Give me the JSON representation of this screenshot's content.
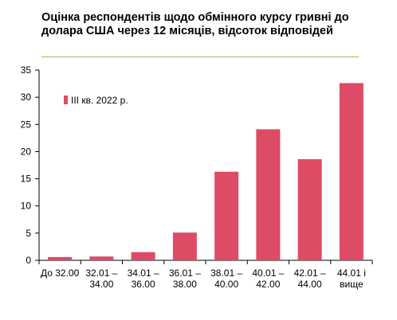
{
  "title": "Оцінка респондентів щодо обмінного курсу гривні до долара США через 12 місяців, відсоток відповідей",
  "colors": {
    "bar": "#dd4b64",
    "axis": "#000000",
    "title_rule": "#9bbb59"
  },
  "chart_data": {
    "type": "bar",
    "title": "Оцінка респондентів щодо обмінного курсу гривні до долара США через 12 місяців, відсоток відповідей",
    "categories": [
      [
        "До 32.00"
      ],
      [
        "32.01 –",
        "34.00"
      ],
      [
        "34.01 –",
        "36.00"
      ],
      [
        "36.01 –",
        "38.00"
      ],
      [
        "38.01 –",
        "40.00"
      ],
      [
        "40.01 –",
        "42.00"
      ],
      [
        "42.01 –",
        "44.00"
      ],
      [
        "44.01 і",
        "вище"
      ]
    ],
    "series": [
      {
        "name": "III кв. 2022 р.",
        "values": [
          0.6,
          0.7,
          1.5,
          5.1,
          16.3,
          24.1,
          18.6,
          32.6
        ]
      }
    ],
    "ylim": [
      0,
      35
    ],
    "yticks": [
      0,
      5,
      10,
      15,
      20,
      25,
      30,
      35
    ],
    "grid": false,
    "legend_position": "top-left"
  }
}
